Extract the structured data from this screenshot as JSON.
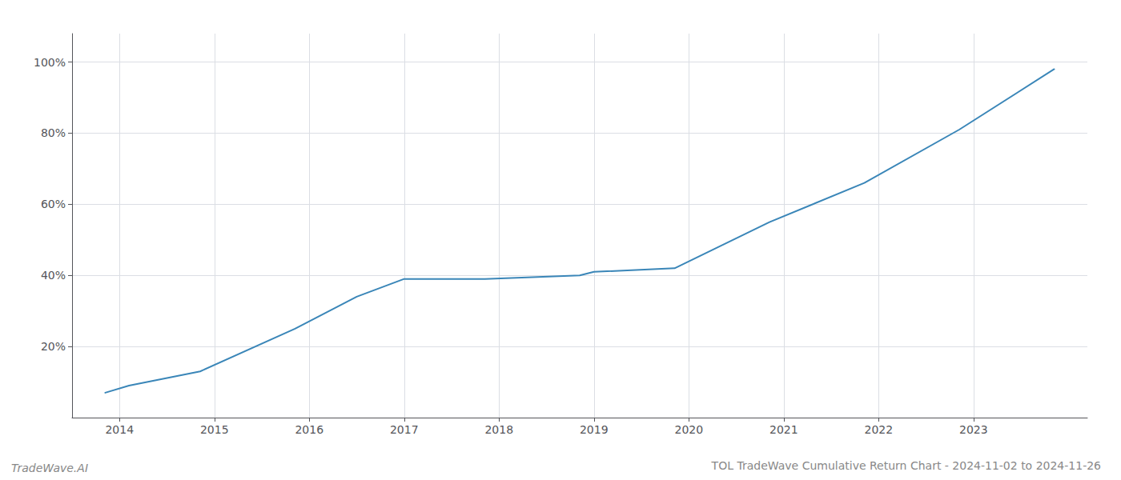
{
  "chart_data": {
    "type": "line",
    "title": "TOL TradeWave Cumulative Return Chart - 2024-11-02 to 2024-11-26",
    "annotations": [
      "TradeWave.AI"
    ],
    "x": [
      2013.85,
      2014.1,
      2014.85,
      2015.85,
      2016.5,
      2017.0,
      2017.85,
      2018.85,
      2019.0,
      2019.85,
      2020.85,
      2021.85,
      2022.85,
      2023.85
    ],
    "values": [
      0.07,
      0.09,
      0.13,
      0.25,
      0.34,
      0.39,
      0.39,
      0.4,
      0.41,
      0.42,
      0.55,
      0.66,
      0.81,
      0.98
    ],
    "color": "#3a86b8",
    "xlim": [
      2013.5,
      2024.2
    ],
    "xticks": [
      2014,
      2015,
      2016,
      2017,
      2018,
      2019,
      2020,
      2021,
      2022,
      2023
    ],
    "ylim": [
      0.0,
      1.08
    ],
    "yticks": [
      {
        "value": 0.2,
        "label": "20%"
      },
      {
        "value": 0.4,
        "label": "40%"
      },
      {
        "value": 0.6,
        "label": "60%"
      },
      {
        "value": 0.8,
        "label": "80%"
      },
      {
        "value": 1.0,
        "label": "100%"
      }
    ],
    "grid": true
  }
}
